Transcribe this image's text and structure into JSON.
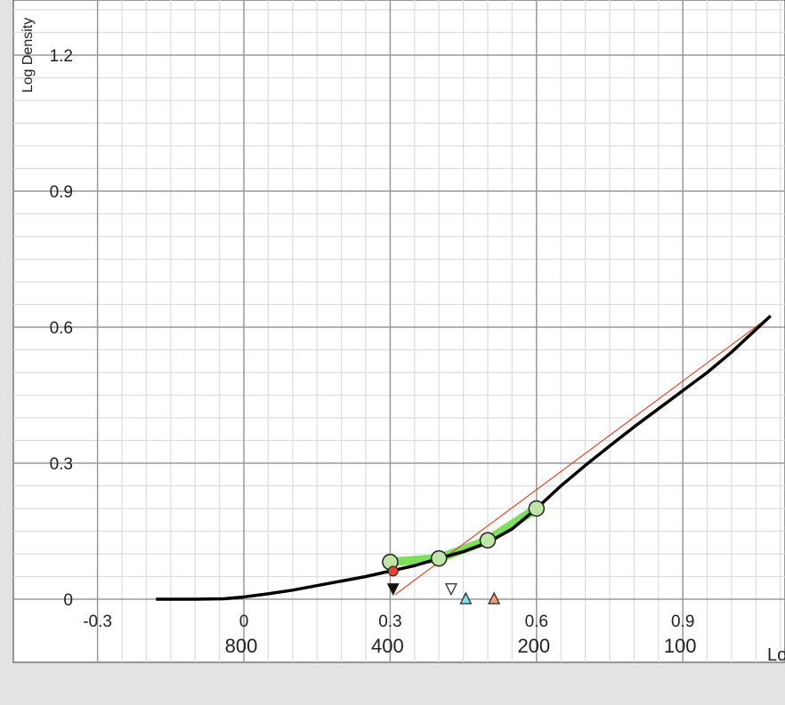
{
  "chart_data": {
    "type": "line",
    "ylabel": "Log Density",
    "xlabel_visible": "Lo",
    "x_ticks": [
      "-0.3",
      "0",
      "0.3",
      "0.6",
      "0.9"
    ],
    "x_ticks_secondary": [
      "800",
      "400",
      "200",
      "100"
    ],
    "y_ticks": [
      "0",
      "0.3",
      "0.6",
      "0.9",
      "1.2"
    ],
    "xlim": [
      -0.3,
      1.08
    ],
    "ylim": [
      0,
      1.32
    ],
    "grid": true,
    "colors": {
      "background": "#ffffff",
      "page": "#e3e3e3",
      "grid_major": "#999999",
      "grid_minor": "#dddddd",
      "curve": "#000000",
      "band": "#7de05a",
      "marker_fill": "#bfe6a6",
      "red_line": "#e04a2a",
      "red_point": "#e8442b",
      "cyan_marker": "#7fdcea",
      "orange_marker": "#f0a070"
    },
    "series": [
      {
        "role": "characteristic-curve",
        "x": [
          -0.18,
          -0.1,
          -0.04,
          0.0,
          0.05,
          0.1,
          0.15,
          0.2,
          0.25,
          0.3,
          0.35,
          0.4,
          0.45,
          0.5,
          0.55,
          0.6,
          0.65,
          0.7,
          0.75,
          0.8,
          0.85,
          0.9,
          0.95,
          1.0,
          1.05,
          1.08
        ],
        "y": [
          0.0,
          0.0,
          0.001,
          0.005,
          0.012,
          0.02,
          0.03,
          0.04,
          0.05,
          0.062,
          0.074,
          0.09,
          0.105,
          0.125,
          0.155,
          0.2,
          0.25,
          0.295,
          0.338,
          0.38,
          0.42,
          0.46,
          0.5,
          0.545,
          0.595,
          0.625
        ]
      },
      {
        "role": "green-band",
        "x": [
          0.3,
          0.4,
          0.5,
          0.6
        ],
        "y": [
          0.082,
          0.09,
          0.13,
          0.2
        ]
      },
      {
        "role": "reference-line",
        "x": [
          0.31,
          1.08
        ],
        "y": [
          0.01,
          0.625
        ]
      }
    ],
    "markers": {
      "circles": [
        {
          "x": 0.3,
          "y": 0.082
        },
        {
          "x": 0.4,
          "y": 0.09
        },
        {
          "x": 0.5,
          "y": 0.13
        },
        {
          "x": 0.6,
          "y": 0.2
        }
      ],
      "red_point": {
        "x": 0.306,
        "y": 0.062
      },
      "triangle_down_filled": {
        "x": 0.306,
        "y": 0.022
      },
      "triangle_down_open": {
        "x": 0.425,
        "y": 0.022
      },
      "triangle_up_cyan": {
        "x": 0.455,
        "y": 0.002
      },
      "triangle_up_orange": {
        "x": 0.513,
        "y": 0.002
      }
    }
  }
}
